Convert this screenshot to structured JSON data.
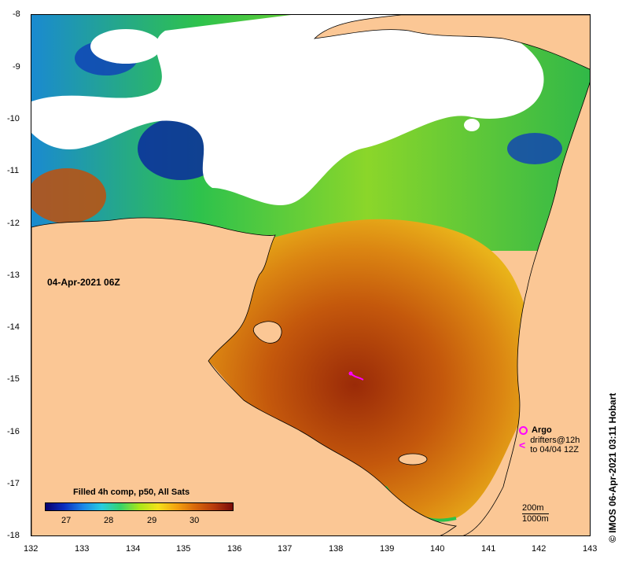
{
  "map": {
    "date_label": "04-Apr-2021 06Z",
    "lat_ticks": [
      "-8",
      "-9",
      "-10",
      "-11",
      "-12",
      "-13",
      "-14",
      "-15",
      "-16",
      "-17",
      "-18"
    ],
    "lon_ticks": [
      "132",
      "133",
      "134",
      "135",
      "136",
      "137",
      "138",
      "139",
      "140",
      "141",
      "142",
      "143"
    ],
    "colors": {
      "land": "#fbc795",
      "cloud": "#ffffff",
      "warm": "#c0500c",
      "hot": "#8e1c08",
      "cool": "#2f9e3a",
      "cold": "#0a2a9c"
    }
  },
  "colorbar": {
    "title": "Filled 4h comp, p50, All Sats",
    "ticks": [
      "27",
      "28",
      "29",
      "30"
    ]
  },
  "legend": {
    "argo": "Argo",
    "drifters_line1": "drifters@12h",
    "drifters_line2": "to 04/04 12Z"
  },
  "scale": {
    "line1": "200m",
    "line2": "1000m"
  },
  "credit": "© IMOS 06-Apr-2021 03:11 Hobart"
}
